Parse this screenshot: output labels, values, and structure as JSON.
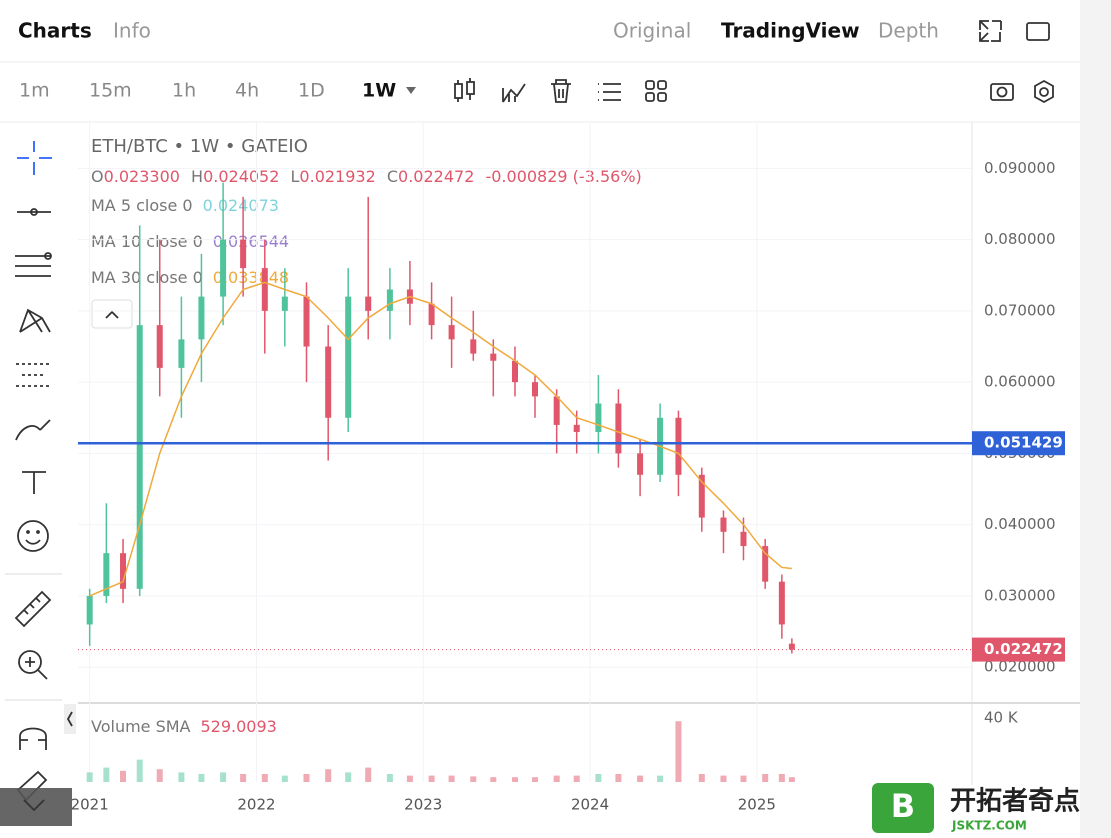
{
  "header": {
    "tabs": [
      "Charts",
      "Info"
    ],
    "views": [
      "Original",
      "TradingView",
      "Depth"
    ]
  },
  "toolbar": {
    "intervals": [
      "1m",
      "15m",
      "1h",
      "4h",
      "1D",
      "1W"
    ]
  },
  "legend": {
    "symbol": "ETH/BTC • 1W • GATEIO",
    "ohlc": [
      {
        "key": "O",
        "value": "0.023300"
      },
      {
        "key": "H",
        "value": "0.024052"
      },
      {
        "key": "L",
        "value": "0.021932"
      },
      {
        "key": "C",
        "value": "0.022472"
      }
    ],
    "change": "-0.000829 (-3.56%)",
    "ma": [
      {
        "label": "MA 5 close 0",
        "value": "0.024073",
        "color": "#7fd3dc"
      },
      {
        "label": "MA 10 close 0",
        "value": "0.026544",
        "color": "#9a7fcf"
      },
      {
        "label": "MA 30 close 0",
        "value": "0.033848",
        "color": "#f0a93b"
      }
    ]
  },
  "chart_data": {
    "type": "candlestick",
    "x": [
      2021.0,
      2021.1,
      2021.2,
      2021.3,
      2021.42,
      2021.55,
      2021.67,
      2021.8,
      2021.92,
      2022.05,
      2022.17,
      2022.3,
      2022.43,
      2022.55,
      2022.67,
      2022.8,
      2022.92,
      2023.05,
      2023.17,
      2023.3,
      2023.42,
      2023.55,
      2023.67,
      2023.8,
      2023.92,
      2024.05,
      2024.17,
      2024.3,
      2024.42,
      2024.53,
      2024.67,
      2024.8,
      2024.92,
      2025.05,
      2025.15,
      2025.21
    ],
    "open": [
      0.026,
      0.03,
      0.036,
      0.031,
      0.068,
      0.062,
      0.066,
      0.072,
      0.08,
      0.076,
      0.07,
      0.072,
      0.065,
      0.055,
      0.072,
      0.07,
      0.073,
      0.071,
      0.068,
      0.066,
      0.064,
      0.063,
      0.06,
      0.058,
      0.054,
      0.053,
      0.057,
      0.05,
      0.047,
      0.055,
      0.047,
      0.041,
      0.039,
      0.037,
      0.032,
      0.0233
    ],
    "high": [
      0.031,
      0.043,
      0.038,
      0.082,
      0.08,
      0.072,
      0.078,
      0.088,
      0.086,
      0.08,
      0.076,
      0.074,
      0.068,
      0.076,
      0.086,
      0.076,
      0.077,
      0.074,
      0.072,
      0.07,
      0.066,
      0.065,
      0.061,
      0.059,
      0.056,
      0.061,
      0.059,
      0.052,
      0.057,
      0.056,
      0.048,
      0.042,
      0.041,
      0.038,
      0.033,
      0.024052
    ],
    "low": [
      0.023,
      0.029,
      0.029,
      0.03,
      0.058,
      0.055,
      0.06,
      0.068,
      0.072,
      0.064,
      0.065,
      0.06,
      0.049,
      0.053,
      0.066,
      0.066,
      0.068,
      0.066,
      0.062,
      0.063,
      0.058,
      0.058,
      0.055,
      0.05,
      0.05,
      0.05,
      0.048,
      0.044,
      0.046,
      0.044,
      0.039,
      0.036,
      0.035,
      0.031,
      0.024,
      0.021932
    ],
    "close": [
      0.03,
      0.036,
      0.031,
      0.068,
      0.062,
      0.066,
      0.072,
      0.08,
      0.076,
      0.07,
      0.072,
      0.065,
      0.055,
      0.072,
      0.07,
      0.073,
      0.071,
      0.068,
      0.066,
      0.064,
      0.063,
      0.06,
      0.058,
      0.054,
      0.053,
      0.057,
      0.05,
      0.047,
      0.055,
      0.047,
      0.041,
      0.039,
      0.037,
      0.032,
      0.026,
      0.022472
    ],
    "ma30": [
      0.03,
      0.031,
      0.032,
      0.04,
      0.05,
      0.058,
      0.064,
      0.069,
      0.073,
      0.074,
      0.073,
      0.072,
      0.069,
      0.066,
      0.069,
      0.071,
      0.072,
      0.071,
      0.069,
      0.067,
      0.065,
      0.063,
      0.061,
      0.058,
      0.055,
      0.054,
      0.053,
      0.052,
      0.051,
      0.05,
      0.046,
      0.043,
      0.04,
      0.036,
      0.034,
      0.033848
    ],
    "up_color": "#4fc39b",
    "down_color": "#e0566a",
    "xlim": [
      2020.93,
      2026.29
    ],
    "xticks": [
      2021,
      2022,
      2023,
      2024,
      2025
    ],
    "ylim": [
      0.0154,
      0.0965
    ],
    "yticks": [
      {
        "value": 0.02,
        "label": "0.020000"
      },
      {
        "value": 0.03,
        "label": "0.030000"
      },
      {
        "value": 0.04,
        "label": "0.040000"
      },
      {
        "value": 0.05,
        "label": "0.050000"
      },
      {
        "value": 0.06,
        "label": "0.060000"
      },
      {
        "value": 0.07,
        "label": "0.070000"
      },
      {
        "value": 0.08,
        "label": "0.080000"
      },
      {
        "value": 0.09,
        "label": "0.090000"
      }
    ],
    "grid": true,
    "hline": {
      "value": 0.051429,
      "label": "0.051429",
      "color": "#2f62d6"
    },
    "last_price": {
      "value": 0.022472,
      "label": "0.022472",
      "color": "#e0566a"
    },
    "volume": {
      "name": "Volume SMA",
      "sma": "529.0093",
      "ylim": [
        0,
        49400
      ],
      "yticks": [
        {
          "value": 40000,
          "label": "40 K"
        }
      ],
      "values": [
        6000,
        9000,
        7000,
        14000,
        8000,
        6000,
        5000,
        6000,
        5000,
        5000,
        4000,
        5000,
        8000,
        6000,
        9000,
        5000,
        4000,
        4000,
        4000,
        3500,
        3000,
        3000,
        3000,
        4000,
        4000,
        5000,
        5000,
        4000,
        4000,
        38000,
        5000,
        4000,
        4000,
        5000,
        5000,
        3000
      ]
    }
  },
  "watermark": {
    "logo": "B",
    "name": "开拓者奇点",
    "url": "JSKTZ.COM"
  }
}
